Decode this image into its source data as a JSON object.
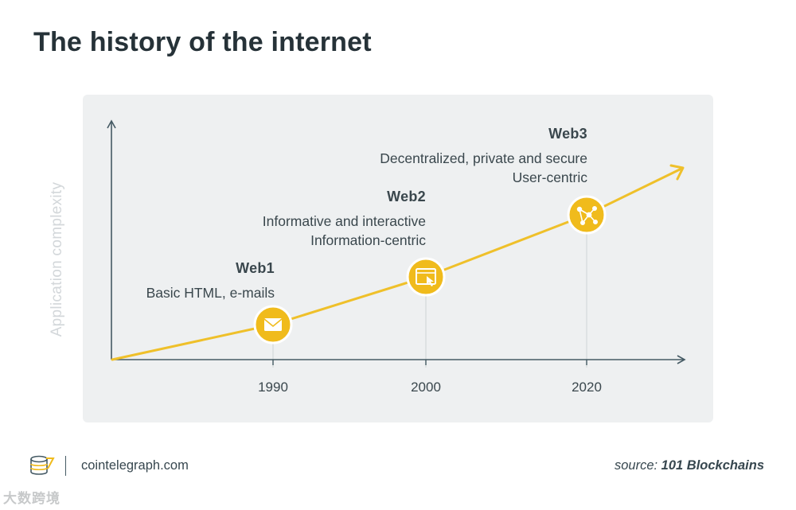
{
  "title": "The history of the internet",
  "diagram": {
    "y_axis_label": "Application complexity",
    "x_ticks": [
      "1990",
      "2000",
      "2020"
    ],
    "eras": [
      {
        "name": "Web1",
        "lines": [
          "Basic HTML, e-mails"
        ],
        "year": "1990",
        "icon": "envelope-icon"
      },
      {
        "name": "Web2",
        "lines": [
          "Informative and interactive",
          "Information-centric"
        ],
        "year": "2000",
        "icon": "browser-cursor-icon"
      },
      {
        "name": "Web3",
        "lines": [
          "Decentralized, private and secure",
          "User-centric"
        ],
        "year": "2020",
        "icon": "network-nodes-icon"
      }
    ],
    "colors": {
      "line": "#efc02a",
      "node": "#f0bb1c",
      "axis": "#455a64",
      "panel": "#eef0f1"
    }
  },
  "footer": {
    "site": "cointelegraph.com",
    "source_prefix": "source:",
    "source_name": "101 Blockchains"
  },
  "watermark": "大数跨境"
}
